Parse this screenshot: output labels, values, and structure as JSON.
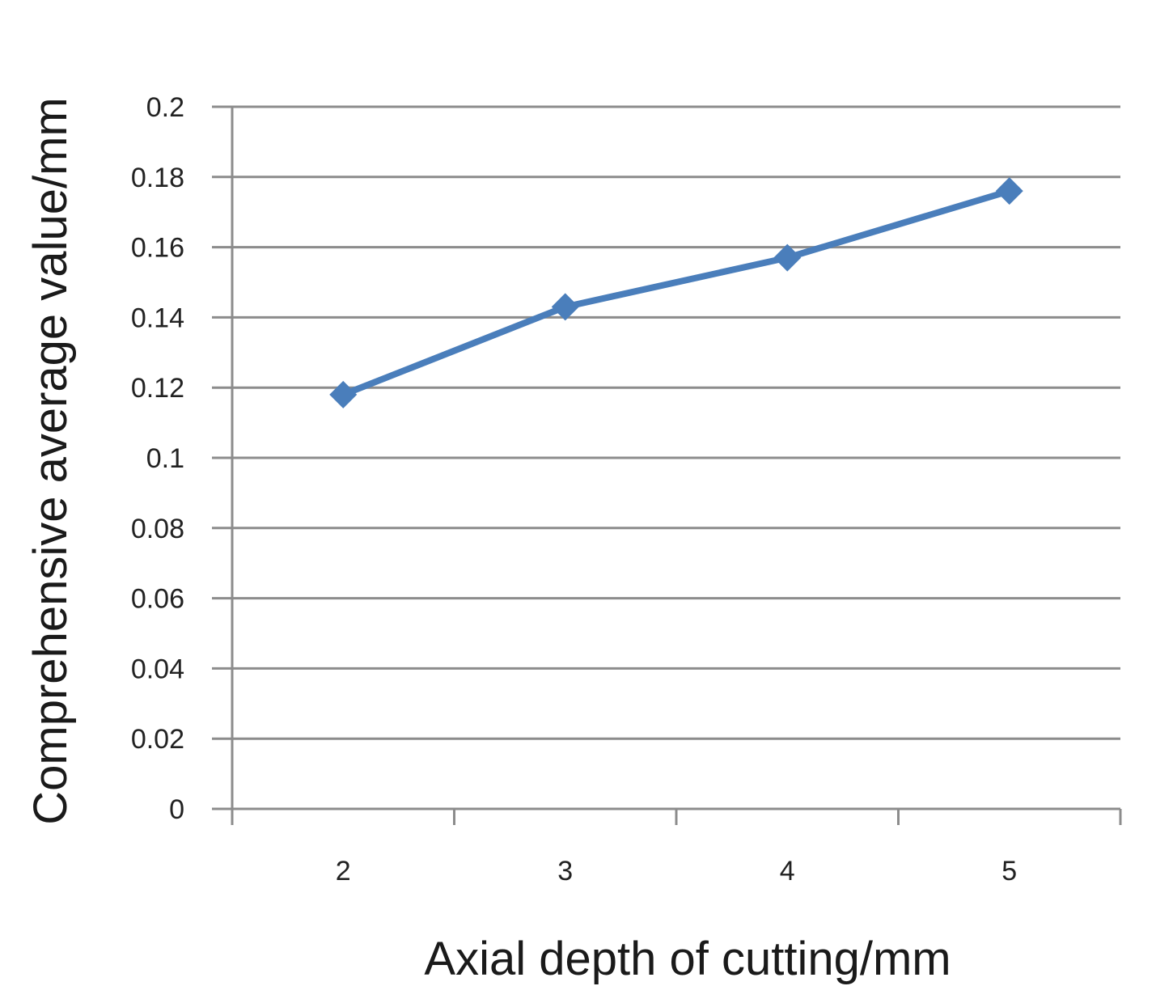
{
  "chart_data": {
    "type": "line",
    "xlabel": "Axial depth of cutting/mm",
    "ylabel": "Comprehensive average value/mm",
    "categories": [
      "2",
      "3",
      "4",
      "5"
    ],
    "series": [
      {
        "values": [
          0.118,
          0.143,
          0.157,
          0.176
        ],
        "color": "#4a7ebb",
        "marker": "diamond"
      }
    ],
    "ylim": [
      0,
      0.2
    ],
    "yticks": [
      "0",
      "0.02",
      "0.04",
      "0.06",
      "0.08",
      "0.1",
      "0.12",
      "0.14",
      "0.16",
      "0.18",
      "0.2"
    ],
    "grid": true,
    "legend": false
  }
}
